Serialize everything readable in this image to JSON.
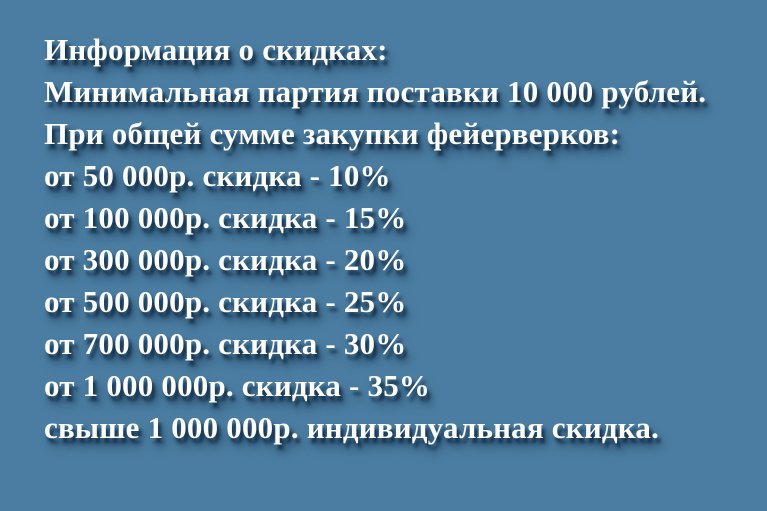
{
  "colors": {
    "background": "#4B7DA2",
    "text": "#FBFBF7",
    "shadow": "#0E273E"
  },
  "banner": {
    "title": "Информация о скидках:",
    "minimum_order": "Минимальная партия поставки 10 000 рублей.",
    "condition_header": "При общей сумме закупки фейерверков:",
    "tiers": [
      "от 50 000р. скидка - 10%",
      "от 100 000р. скидка - 15%",
      "от 300 000р. скидка - 20%",
      "от 500 000р. скидка - 25%",
      "от 700 000р. скидка - 30%",
      "от 1 000 000р. скидка - 35%"
    ],
    "custom_discount": "свыше 1 000 000р. индивидуальная скидка."
  }
}
